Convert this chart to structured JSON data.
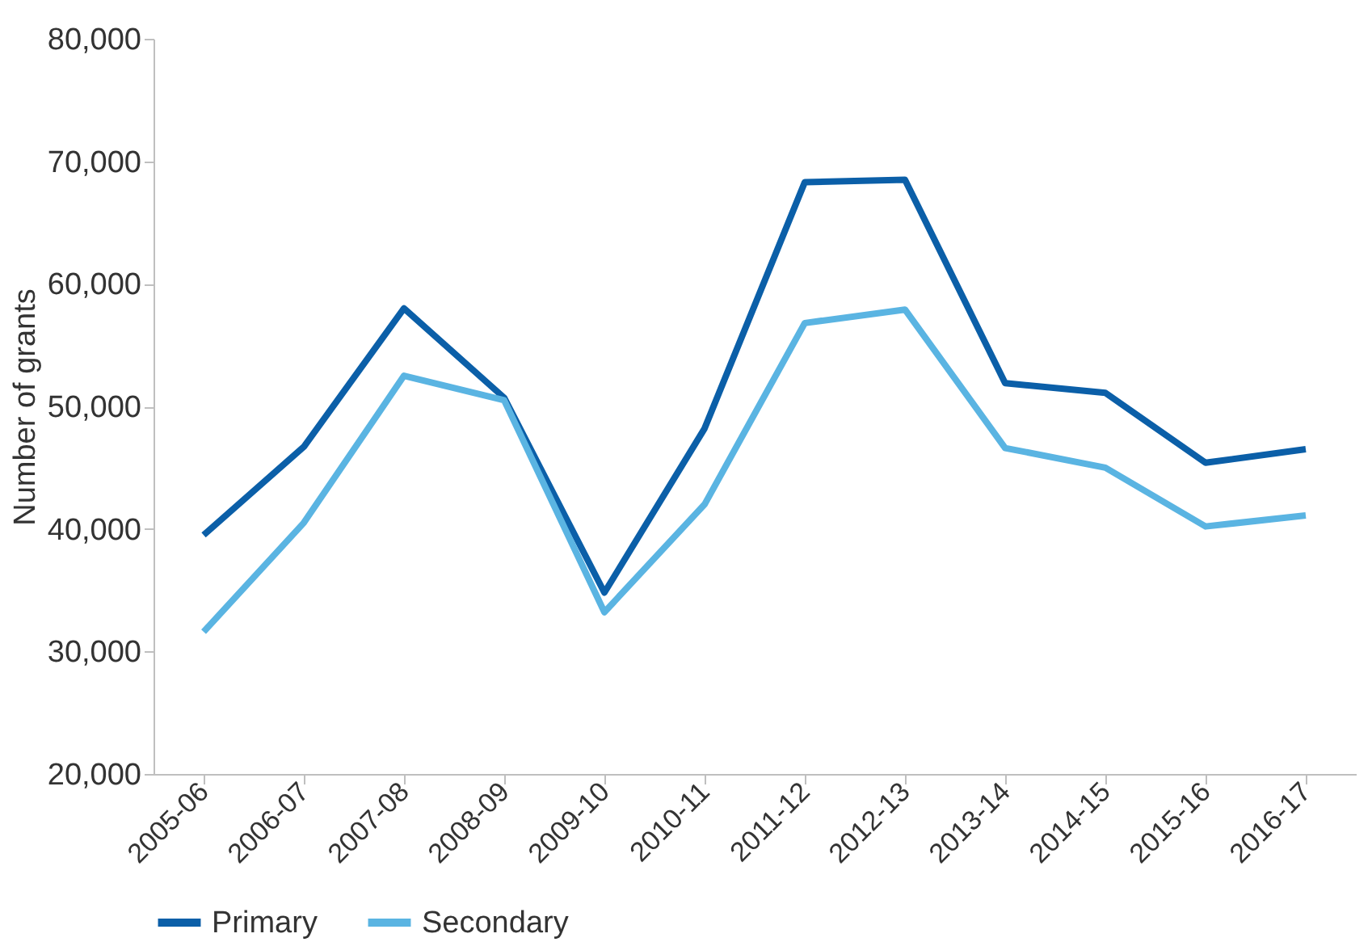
{
  "chart_data": {
    "type": "line",
    "ylabel": "Number of grants",
    "categories": [
      "2005-06",
      "2006-07",
      "2007-08",
      "2008-09",
      "2009-10",
      "2010-11",
      "2011-12",
      "2012-13",
      "2013-14",
      "2014-15",
      "2015-16",
      "2016-17"
    ],
    "series": [
      {
        "name": "Primary",
        "color": "#0b5fa8",
        "values": [
          39500,
          46700,
          58000,
          50700,
          34800,
          48200,
          68300,
          68500,
          51900,
          51100,
          45400,
          46500
        ]
      },
      {
        "name": "Secondary",
        "color": "#5ab4e2",
        "values": [
          31600,
          40500,
          52500,
          50500,
          33200,
          42000,
          56800,
          57900,
          46600,
          45000,
          40200,
          41100
        ]
      }
    ],
    "ylim": [
      20000,
      80000
    ],
    "yticks": [
      {
        "value": 20000,
        "label": "20,000"
      },
      {
        "value": 30000,
        "label": "30,000"
      },
      {
        "value": 40000,
        "label": "40,000"
      },
      {
        "value": 50000,
        "label": "50,000"
      },
      {
        "value": 60000,
        "label": "60,000"
      },
      {
        "value": 70000,
        "label": "70,000"
      },
      {
        "value": 80000,
        "label": "80,000"
      }
    ],
    "grid": false,
    "legend": "bottom",
    "marker": "none",
    "line_style": "solid"
  }
}
